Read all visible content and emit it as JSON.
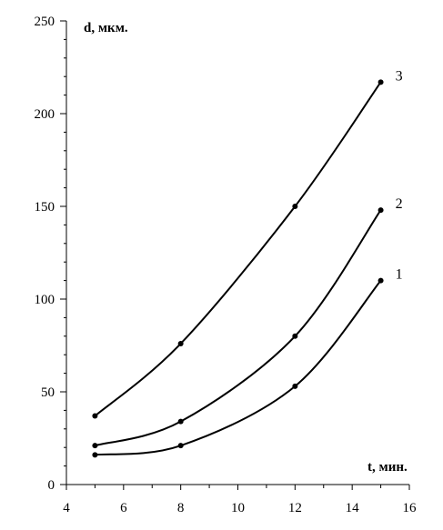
{
  "chart_data": {
    "type": "line",
    "xlabel": "t, мин.",
    "ylabel": "d, мкм.",
    "xlim": [
      4,
      16
    ],
    "ylim": [
      0,
      250
    ],
    "x_ticks": [
      "4",
      "6",
      "8",
      "10",
      "12",
      "14",
      "16"
    ],
    "y_ticks": [
      "0",
      "50",
      "100",
      "150",
      "200",
      "250"
    ],
    "grid": false,
    "series": [
      {
        "name": "1",
        "x": [
          5,
          8,
          12,
          15
        ],
        "y": [
          16,
          21,
          53,
          110
        ]
      },
      {
        "name": "2",
        "x": [
          5,
          8,
          12,
          15
        ],
        "y": [
          21,
          34,
          80,
          148
        ]
      },
      {
        "name": "3",
        "x": [
          5,
          8,
          12,
          15
        ],
        "y": [
          37,
          76,
          150,
          217
        ]
      }
    ]
  }
}
